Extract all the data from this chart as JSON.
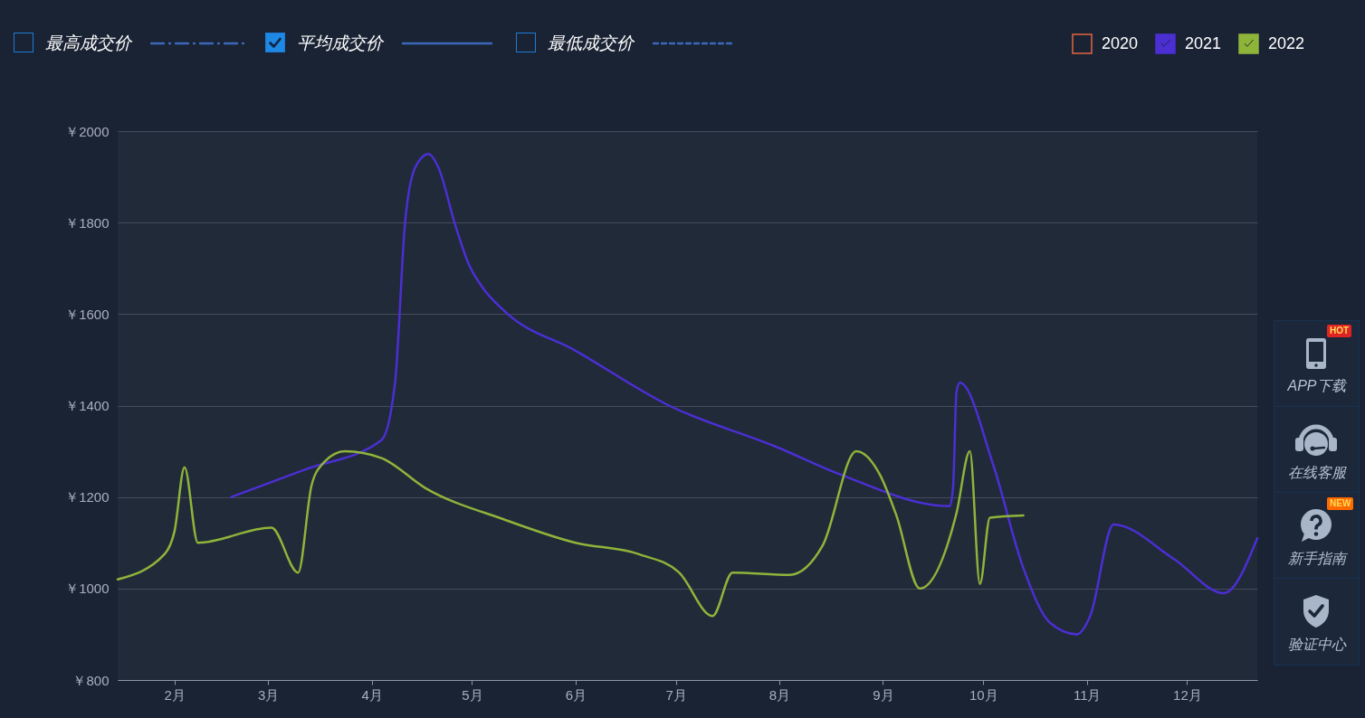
{
  "chart_data": {
    "type": "line",
    "xlim": [
      "--01-15",
      "--12-22"
    ],
    "xticks": [
      {
        "value": "--02-01",
        "label": "2月"
      },
      {
        "value": "--03-01",
        "label": "3月"
      },
      {
        "value": "--04-01",
        "label": "4月"
      },
      {
        "value": "--05-01",
        "label": "5月"
      },
      {
        "value": "--06-01",
        "label": "6月"
      },
      {
        "value": "--07-01",
        "label": "7月"
      },
      {
        "value": "--08-01",
        "label": "8月"
      },
      {
        "value": "--09-01",
        "label": "9月"
      },
      {
        "value": "--10-01",
        "label": "10月"
      },
      {
        "value": "--11-01",
        "label": "11月"
      },
      {
        "value": "--12-01",
        "label": "12月"
      }
    ],
    "ylim": [
      800,
      2000
    ],
    "yticks": [
      {
        "value": 800,
        "label": "￥800"
      },
      {
        "value": 1000,
        "label": "￥1000"
      },
      {
        "value": 1200,
        "label": "￥1200"
      },
      {
        "value": 1400,
        "label": "￥1400"
      },
      {
        "value": 1600,
        "label": "￥1600"
      },
      {
        "value": 1800,
        "label": "￥1800"
      },
      {
        "value": 2000,
        "label": "￥2000"
      }
    ],
    "grid": "y",
    "legend": "top right",
    "line_style": "solid",
    "series": [
      {
        "name": "2020",
        "color": "#e3653f"
      },
      {
        "name": "2021",
        "color": "#4b2fd3",
        "x": [
          "--02-18",
          "--03-12",
          "--04-04",
          "--04-08",
          "--04-11",
          "--04-14",
          "--04-18",
          "--04-21",
          "--04-26",
          "--04-30",
          "--05-04",
          "--05-11",
          "--06-01",
          "--06-29",
          "--07-31",
          "--08-19",
          "--09-21",
          "--09-22",
          "--09-23",
          "--09-24",
          "--10-04",
          "--10-13",
          "--10-21",
          "--10-29",
          "--11-02",
          "--11-09",
          "--11-27",
          "--12-12",
          "--12-22"
        ],
        "values": [
          1200,
          1260,
          1325,
          1450,
          1800,
          1920,
          1950,
          1920,
          1795,
          1710,
          1660,
          1605,
          1520,
          1400,
          1310,
          1250,
          1180,
          1225,
          1430,
          1450,
          1270,
          1045,
          925,
          900,
          940,
          1140,
          1065,
          990,
          1110
        ]
      },
      {
        "name": "2022",
        "color": "#8fb43a",
        "x": [
          "--01-15",
          "--01-29",
          "--02-01",
          "--02-04",
          "--02-08",
          "--03-02",
          "--03-10",
          "--03-14",
          "--03-17",
          "--03-24",
          "--04-04",
          "--04-17",
          "--05-11",
          "--06-01",
          "--06-20",
          "--07-02",
          "--07-12",
          "--07-18",
          "--08-04",
          "--08-14",
          "--08-24",
          "--08-31",
          "--09-05",
          "--09-12",
          "--09-23",
          "--09-27",
          "--09-30",
          "--10-03",
          "--10-13"
        ],
        "values": [
          1020,
          1075,
          1125,
          1265,
          1100,
          1133,
          1035,
          1225,
          1270,
          1300,
          1285,
          1220,
          1150,
          1100,
          1075,
          1035,
          940,
          1035,
          1030,
          1095,
          1300,
          1250,
          1160,
          1000,
          1165,
          1300,
          1010,
          1155,
          1160
        ]
      }
    ],
    "annotations": [
      "最高成交价",
      "平均成交价",
      "最低成交价",
      "APP下载",
      "在线客服",
      "新手指南",
      "验证中心",
      "HOT",
      "NEW"
    ]
  }
}
